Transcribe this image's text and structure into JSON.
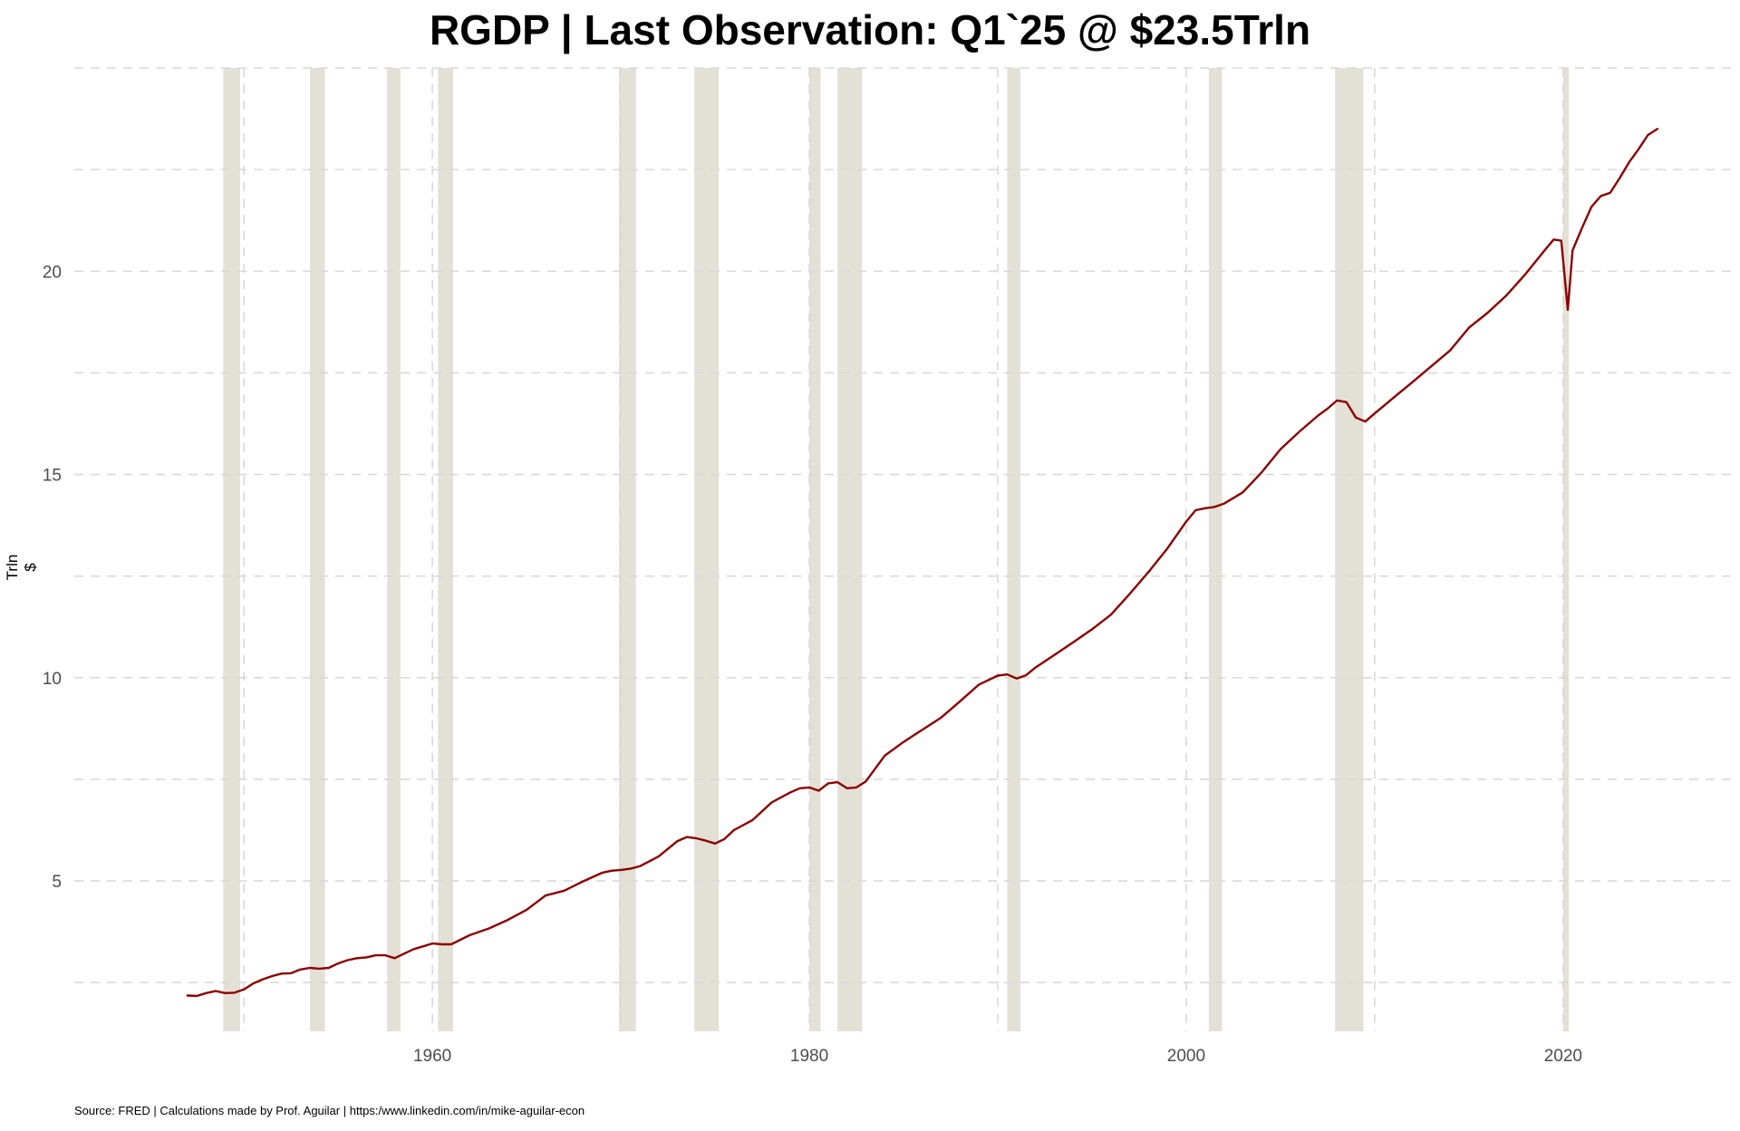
{
  "chart_data": {
    "type": "line",
    "title": "RGDP | Last Observation: Q1`25 @ $23.5Trln",
    "ylabel": "Trln $",
    "xlabel": "",
    "caption": "Source: FRED | Calculations made by Prof. Aguilar | https:/www.linkedin.com/in/mike-aguilar-econ",
    "xlim": [
      1941,
      2029
    ],
    "ylim": [
      1.3,
      25.0
    ],
    "x_ticks": [
      1960,
      1980,
      2000,
      2020
    ],
    "y_ticks": [
      5,
      10,
      15,
      20
    ],
    "grid": true,
    "legend": "none",
    "line_color": "#8b0000",
    "recession_color": "#e3e0d5",
    "grid_color": "#d9d9d9",
    "recessions": [
      [
        1948.9,
        1949.8
      ],
      [
        1953.5,
        1954.3
      ],
      [
        1957.6,
        1958.3
      ],
      [
        1960.3,
        1961.1
      ],
      [
        1969.9,
        1970.8
      ],
      [
        1973.9,
        1975.2
      ],
      [
        1980.0,
        1980.6
      ],
      [
        1981.5,
        1982.8
      ],
      [
        1990.5,
        1991.2
      ],
      [
        2001.2,
        2001.9
      ],
      [
        2007.9,
        2009.4
      ],
      [
        2020.0,
        2020.3
      ]
    ],
    "series": [
      {
        "x": [
          1947.0,
          1947.5,
          1948.0,
          1948.5,
          1949.0,
          1949.5,
          1950.0,
          1950.5,
          1951.0,
          1951.5,
          1952.0,
          1952.5,
          1953.0,
          1953.5,
          1954.0,
          1954.5,
          1955.0,
          1955.5,
          1956.0,
          1956.5,
          1957.0,
          1957.5,
          1958.0,
          1958.5,
          1959.0,
          1959.5,
          1960.0,
          1960.5,
          1961.0,
          1962.0,
          1963.0,
          1964.0,
          1965.0,
          1966.0,
          1967.0,
          1968.0,
          1969.0,
          1969.5,
          1970.0,
          1970.5,
          1971.0,
          1972.0,
          1973.0,
          1973.5,
          1974.0,
          1974.5,
          1975.0,
          1975.5,
          1976.0,
          1977.0,
          1978.0,
          1979.0,
          1979.5,
          1980.0,
          1980.5,
          1981.0,
          1981.5,
          1982.0,
          1982.5,
          1983.0,
          1984.0,
          1985.0,
          1986.0,
          1987.0,
          1988.0,
          1989.0,
          1990.0,
          1990.5,
          1991.0,
          1991.5,
          1992.0,
          1993.0,
          1994.0,
          1995.0,
          1996.0,
          1997.0,
          1998.0,
          1999.0,
          2000.0,
          2000.5,
          2001.0,
          2001.5,
          2002.0,
          2003.0,
          2004.0,
          2005.0,
          2006.0,
          2007.0,
          2007.5,
          2008.0,
          2008.5,
          2009.0,
          2009.5,
          2010.0,
          2011.0,
          2012.0,
          2013.0,
          2014.0,
          2015.0,
          2016.0,
          2017.0,
          2018.0,
          2019.0,
          2019.5,
          2019.9,
          2020.25,
          2020.5,
          2021.0,
          2021.5,
          2022.0,
          2022.5,
          2023.0,
          2023.5,
          2024.0,
          2024.5,
          2025.0
        ],
        "values": [
          2.18,
          2.17,
          2.24,
          2.29,
          2.24,
          2.25,
          2.33,
          2.48,
          2.58,
          2.66,
          2.72,
          2.73,
          2.82,
          2.86,
          2.84,
          2.86,
          2.97,
          3.05,
          3.1,
          3.12,
          3.17,
          3.17,
          3.1,
          3.21,
          3.32,
          3.39,
          3.46,
          3.44,
          3.44,
          3.67,
          3.83,
          4.04,
          4.29,
          4.64,
          4.76,
          4.99,
          5.2,
          5.25,
          5.27,
          5.3,
          5.36,
          5.6,
          5.98,
          6.08,
          6.05,
          5.99,
          5.92,
          6.03,
          6.25,
          6.5,
          6.93,
          7.18,
          7.28,
          7.3,
          7.22,
          7.4,
          7.43,
          7.28,
          7.3,
          7.45,
          8.08,
          8.42,
          8.72,
          9.02,
          9.42,
          9.83,
          10.05,
          10.08,
          9.98,
          10.06,
          10.25,
          10.56,
          10.87,
          11.19,
          11.55,
          12.06,
          12.6,
          13.18,
          13.84,
          14.12,
          14.17,
          14.2,
          14.28,
          14.56,
          15.05,
          15.62,
          16.05,
          16.45,
          16.62,
          16.82,
          16.78,
          16.4,
          16.3,
          16.5,
          16.89,
          17.27,
          17.66,
          18.05,
          18.61,
          18.98,
          19.41,
          19.93,
          20.5,
          20.78,
          20.75,
          19.05,
          20.51,
          21.06,
          21.58,
          21.85,
          21.93,
          22.29,
          22.68,
          23.0,
          23.35,
          23.5
        ]
      }
    ]
  }
}
